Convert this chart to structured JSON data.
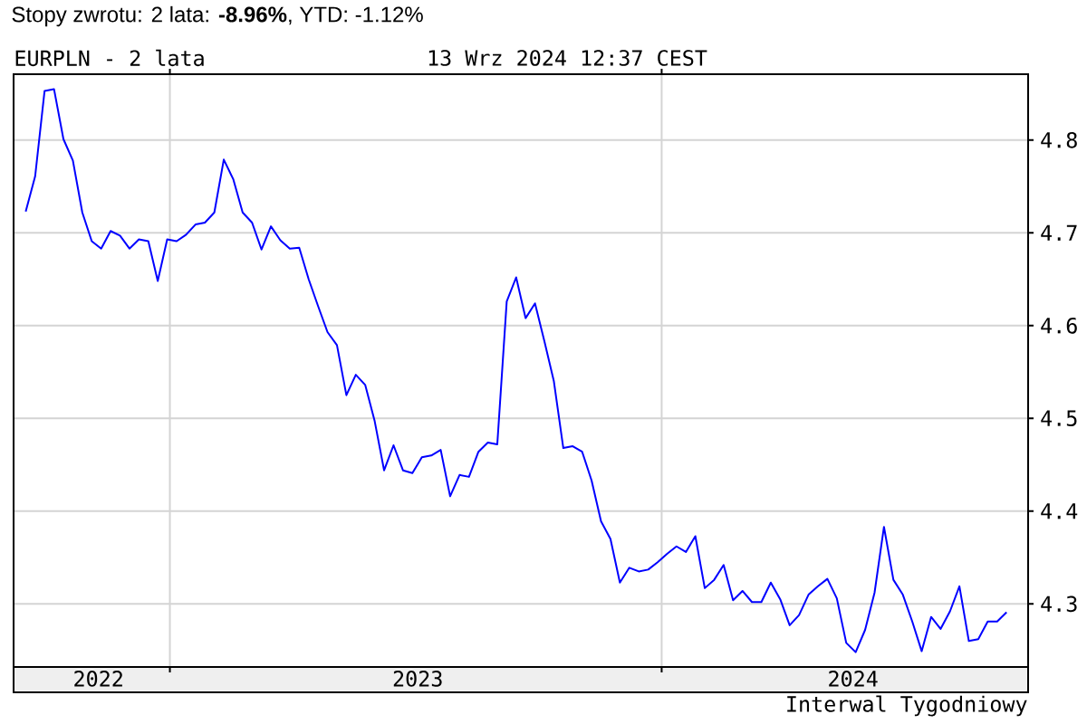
{
  "chart_data": {
    "type": "line",
    "title": "EURPLN - 2 lata",
    "subtitle": "13 Wrz 2024 12:37 CEST",
    "annotations": [
      "Stopy zwrotu: 2 lata: **-8.96%**, YTD: -1.12%",
      "Interwal Tygodniowy"
    ],
    "x": [
      "2022-09-16",
      "2022-09-23",
      "2022-09-30",
      "2022-10-07",
      "2022-10-14",
      "2022-10-21",
      "2022-10-28",
      "2022-11-04",
      "2022-11-11",
      "2022-11-18",
      "2022-11-25",
      "2022-12-02",
      "2022-12-09",
      "2022-12-16",
      "2022-12-23",
      "2022-12-30",
      "2023-01-06",
      "2023-01-13",
      "2023-01-20",
      "2023-01-27",
      "2023-02-03",
      "2023-02-10",
      "2023-02-17",
      "2023-02-24",
      "2023-03-03",
      "2023-03-10",
      "2023-03-17",
      "2023-03-24",
      "2023-03-31",
      "2023-04-07",
      "2023-04-14",
      "2023-04-21",
      "2023-04-28",
      "2023-05-05",
      "2023-05-12",
      "2023-05-19",
      "2023-05-26",
      "2023-06-02",
      "2023-06-09",
      "2023-06-16",
      "2023-06-23",
      "2023-06-30",
      "2023-07-07",
      "2023-07-14",
      "2023-07-21",
      "2023-07-28",
      "2023-08-04",
      "2023-08-11",
      "2023-08-18",
      "2023-08-25",
      "2023-09-01",
      "2023-09-08",
      "2023-09-15",
      "2023-09-22",
      "2023-09-29",
      "2023-10-06",
      "2023-10-13",
      "2023-10-20",
      "2023-10-27",
      "2023-11-03",
      "2023-11-10",
      "2023-11-17",
      "2023-11-24",
      "2023-12-01",
      "2023-12-08",
      "2023-12-15",
      "2023-12-22",
      "2023-12-29",
      "2024-01-05",
      "2024-01-12",
      "2024-01-19",
      "2024-01-26",
      "2024-02-02",
      "2024-02-09",
      "2024-02-16",
      "2024-02-23",
      "2024-03-01",
      "2024-03-08",
      "2024-03-15",
      "2024-03-22",
      "2024-03-29",
      "2024-04-05",
      "2024-04-12",
      "2024-04-19",
      "2024-04-26",
      "2024-05-03",
      "2024-05-10",
      "2024-05-17",
      "2024-05-24",
      "2024-05-31",
      "2024-06-07",
      "2024-06-14",
      "2024-06-21",
      "2024-06-28",
      "2024-07-05",
      "2024-07-12",
      "2024-07-19",
      "2024-07-26",
      "2024-08-02",
      "2024-08-09",
      "2024-08-16",
      "2024-08-23",
      "2024-08-30",
      "2024-09-06",
      "2024-09-13"
    ],
    "series": [
      {
        "color": "#0000ff",
        "values": [
          4.723,
          4.761,
          4.853,
          4.855,
          4.801,
          4.778,
          4.722,
          4.691,
          4.683,
          4.702,
          4.697,
          4.683,
          4.693,
          4.691,
          4.648,
          4.693,
          4.691,
          4.698,
          4.709,
          4.711,
          4.722,
          4.779,
          4.758,
          4.722,
          4.711,
          4.682,
          4.707,
          4.692,
          4.683,
          4.684,
          4.65,
          4.621,
          4.593,
          4.579,
          4.525,
          4.547,
          4.536,
          4.497,
          4.444,
          4.471,
          4.444,
          4.441,
          4.458,
          4.46,
          4.466,
          4.416,
          4.439,
          4.437,
          4.464,
          4.474,
          4.472,
          4.626,
          4.652,
          4.608,
          4.624,
          4.583,
          4.54,
          4.468,
          4.47,
          4.464,
          4.433,
          4.389,
          4.37,
          4.323,
          4.339,
          4.335,
          4.337,
          4.345,
          4.354,
          4.362,
          4.356,
          4.373,
          4.317,
          4.326,
          4.342,
          4.304,
          4.314,
          4.302,
          4.302,
          4.323,
          4.305,
          4.277,
          4.288,
          4.31,
          4.319,
          4.327,
          4.306,
          4.258,
          4.248,
          4.272,
          4.312,
          4.383,
          4.326,
          4.31,
          4.281,
          4.249,
          4.286,
          4.273,
          4.292,
          4.319,
          4.26,
          4.262,
          4.281,
          4.281,
          4.291
        ]
      }
    ],
    "xlim": [
      "2022-09-07",
      "2024-09-29"
    ],
    "ylim": [
      4.232,
      4.871
    ],
    "xticks": [
      {
        "value": "2022-11-09",
        "label": "2022"
      },
      {
        "value": "2023-01-01",
        "label": null
      },
      {
        "value": "2023-07-04",
        "label": "2023"
      },
      {
        "value": "2024-01-01",
        "label": null
      },
      {
        "value": "2024-05-22",
        "label": "2024"
      }
    ],
    "yticks": [
      4.3,
      4.4,
      4.5,
      4.6,
      4.7,
      4.8
    ],
    "grid": true
  }
}
